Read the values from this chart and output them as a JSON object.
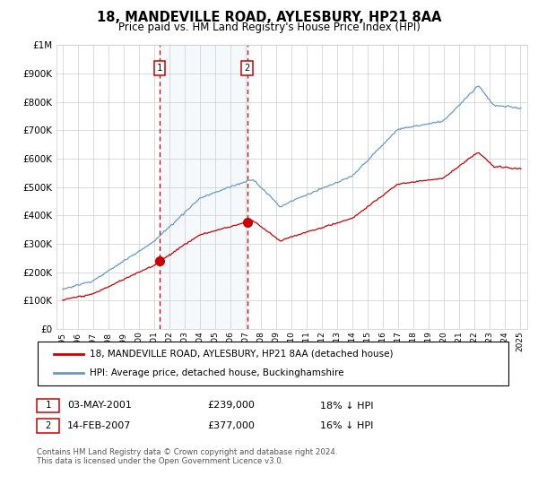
{
  "title": "18, MANDEVILLE ROAD, AYLESBURY, HP21 8AA",
  "subtitle": "Price paid vs. HM Land Registry's House Price Index (HPI)",
  "ylim": [
    0,
    1000000
  ],
  "yticks": [
    0,
    100000,
    200000,
    300000,
    400000,
    500000,
    600000,
    700000,
    800000,
    900000,
    1000000
  ],
  "ytick_labels": [
    "£0",
    "£100K",
    "£200K",
    "£300K",
    "£400K",
    "£500K",
    "£600K",
    "£700K",
    "£800K",
    "£900K",
    "£1M"
  ],
  "sale1_date": 2001.37,
  "sale1_price": 239000,
  "sale1_label": "1",
  "sale1_text": "03-MAY-2001",
  "sale1_price_text": "£239,000",
  "sale1_hpi": "18% ↓ HPI",
  "sale2_date": 2007.12,
  "sale2_price": 377000,
  "sale2_label": "2",
  "sale2_text": "14-FEB-2007",
  "sale2_price_text": "£377,000",
  "sale2_hpi": "16% ↓ HPI",
  "legend_line1": "18, MANDEVILLE ROAD, AYLESBURY, HP21 8AA (detached house)",
  "legend_line2": "HPI: Average price, detached house, Buckinghamshire",
  "footer": "Contains HM Land Registry data © Crown copyright and database right 2024.\nThis data is licensed under the Open Government Licence v3.0.",
  "red_color": "#cc0000",
  "blue_color": "#6699cc",
  "shade_color": "#d8e8f5",
  "grid_color": "#cccccc",
  "bg_color": "#ffffff"
}
